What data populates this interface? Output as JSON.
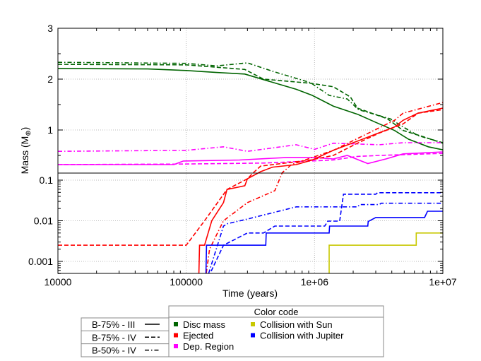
{
  "chart_data": {
    "type": "line",
    "xlabel": "Time (years)",
    "ylabel": "Mass (M",
    "ylabel_sub": "⊕",
    "ylabel_close": ")",
    "x_scale": "log",
    "xlim": [
      10000,
      10000000
    ],
    "x_ticks": [
      {
        "v": 10000,
        "label": "10000"
      },
      {
        "v": 100000,
        "label": "100000"
      },
      {
        "v": 1000000,
        "label": "1e+06"
      },
      {
        "v": 10000000,
        "label": "1e+07"
      }
    ],
    "panels": [
      {
        "position": "top",
        "y_scale": "linear",
        "ylim": [
          0.15,
          3
        ],
        "y_ticks": [
          {
            "v": 3,
            "label": "3"
          },
          {
            "v": 2,
            "label": "2"
          },
          {
            "v": 1,
            "label": "1"
          }
        ]
      },
      {
        "position": "bottom",
        "y_scale": "log",
        "ylim": [
          0.0005,
          0.15
        ],
        "y_ticks": [
          {
            "v": 0.1,
            "label": "0.1"
          },
          {
            "v": 0.01,
            "label": "0.01"
          },
          {
            "v": 0.001,
            "label": "0.001"
          }
        ]
      }
    ],
    "grid": true,
    "colors": {
      "disc": "#006400",
      "ejected": "#ff0000",
      "dep": "#ff00ff",
      "sun": "#c8c800",
      "jupiter": "#0000ff"
    },
    "line_styles": {
      "III75": "solid",
      "IV75": "dashed",
      "IV50": "dash-dot"
    },
    "series": [
      {
        "quantity": "disc",
        "model": "III75",
        "points": [
          [
            10000,
            2.21
          ],
          [
            50000,
            2.2
          ],
          [
            100000,
            2.17
          ],
          [
            172000,
            2.13
          ],
          [
            286000,
            2.1
          ],
          [
            400000,
            1.99
          ],
          [
            720000,
            1.8
          ],
          [
            960000,
            1.68
          ],
          [
            1400000,
            1.47
          ],
          [
            2160000,
            1.31
          ],
          [
            3000000,
            1.15
          ],
          [
            4200000,
            0.99
          ],
          [
            5400000,
            0.82
          ],
          [
            7700000,
            0.67
          ],
          [
            10000000,
            0.61
          ]
        ]
      },
      {
        "quantity": "disc",
        "model": "IV75",
        "points": [
          [
            10000,
            2.29
          ],
          [
            100000,
            2.28
          ],
          [
            286000,
            2.19
          ],
          [
            400000,
            2.0
          ],
          [
            930000,
            1.92
          ],
          [
            1400000,
            1.85
          ],
          [
            1900000,
            1.65
          ],
          [
            2160000,
            1.43
          ],
          [
            3700000,
            1.22
          ],
          [
            4900000,
            0.99
          ],
          [
            7000000,
            0.87
          ],
          [
            10000000,
            0.74
          ]
        ]
      },
      {
        "quantity": "disc",
        "model": "IV50",
        "points": [
          [
            10000,
            2.33
          ],
          [
            100000,
            2.31
          ],
          [
            172000,
            2.26
          ],
          [
            300000,
            2.32
          ],
          [
            490000,
            2.14
          ],
          [
            930000,
            1.93
          ],
          [
            1300000,
            1.68
          ],
          [
            1800000,
            1.61
          ],
          [
            2200000,
            1.4
          ],
          [
            3900000,
            1.22
          ],
          [
            4900000,
            1.06
          ],
          [
            6400000,
            0.89
          ],
          [
            10000000,
            0.75
          ]
        ]
      },
      {
        "quantity": "dep",
        "model": "III75",
        "points": [
          [
            10000,
            0.32
          ],
          [
            80000,
            0.32
          ],
          [
            95000,
            0.39
          ],
          [
            260000,
            0.41
          ],
          [
            610000,
            0.46
          ],
          [
            1000000,
            0.46
          ],
          [
            1400000,
            0.43
          ],
          [
            1800000,
            0.5
          ],
          [
            2600000,
            0.34
          ],
          [
            3600000,
            0.43
          ],
          [
            4900000,
            0.53
          ],
          [
            10000000,
            0.57
          ]
        ]
      },
      {
        "quantity": "dep",
        "model": "IV75",
        "points": [
          [
            10000,
            0.32
          ],
          [
            95000,
            0.33
          ],
          [
            400000,
            0.35
          ],
          [
            1400000,
            0.41
          ],
          [
            2160000,
            0.48
          ],
          [
            3200000,
            0.5
          ],
          [
            10000000,
            0.54
          ]
        ]
      },
      {
        "quantity": "dep",
        "model": "IV50",
        "points": [
          [
            10000,
            0.58
          ],
          [
            100000,
            0.6
          ],
          [
            195000,
            0.67
          ],
          [
            300000,
            0.58
          ],
          [
            720000,
            0.71
          ],
          [
            1000000,
            0.62
          ],
          [
            1400000,
            0.74
          ],
          [
            3200000,
            0.71
          ],
          [
            4900000,
            0.75
          ],
          [
            10000000,
            0.75
          ]
        ]
      },
      {
        "quantity": "ejected",
        "model": "III75",
        "points": [
          [
            125000,
            0.0003
          ],
          [
            127000,
            0.0025
          ],
          [
            139000,
            0.0025
          ],
          [
            158000,
            0.01
          ],
          [
            195000,
            0.028
          ],
          [
            208000,
            0.059
          ],
          [
            286000,
            0.073
          ],
          [
            300000,
            0.108
          ],
          [
            380000,
            0.18
          ],
          [
            470000,
            0.27
          ],
          [
            720000,
            0.32
          ],
          [
            960000,
            0.41
          ],
          [
            1400000,
            0.6
          ],
          [
            2160000,
            0.78
          ],
          [
            3000000,
            0.92
          ],
          [
            4200000,
            1.06
          ],
          [
            4900000,
            1.19
          ],
          [
            6400000,
            1.33
          ],
          [
            10000000,
            1.43
          ]
        ]
      },
      {
        "quantity": "ejected",
        "model": "IV75",
        "points": [
          [
            10000,
            0.0025
          ],
          [
            100000,
            0.0025
          ],
          [
            139000,
            0.01
          ],
          [
            208000,
            0.059
          ],
          [
            300000,
            0.108
          ],
          [
            330000,
            0.15
          ],
          [
            380000,
            0.29
          ],
          [
            930000,
            0.41
          ],
          [
            1400000,
            0.5
          ],
          [
            2160000,
            0.74
          ],
          [
            3200000,
            0.94
          ],
          [
            4900000,
            1.12
          ],
          [
            6400000,
            1.33
          ],
          [
            10000000,
            1.4
          ]
        ]
      },
      {
        "quantity": "ejected",
        "model": "IV50",
        "points": [
          [
            140000,
            0.0003
          ],
          [
            152000,
            0.002
          ],
          [
            195000,
            0.01
          ],
          [
            300000,
            0.028
          ],
          [
            490000,
            0.055
          ],
          [
            560000,
            0.16
          ],
          [
            660000,
            0.32
          ],
          [
            1400000,
            0.6
          ],
          [
            4200000,
            1.19
          ],
          [
            4900000,
            1.33
          ],
          [
            10000000,
            1.54
          ]
        ]
      },
      {
        "quantity": "jupiter",
        "model": "III75",
        "points": [
          [
            142000,
            0.0003
          ],
          [
            144000,
            0.0025
          ],
          [
            417000,
            0.0025
          ],
          [
            420000,
            0.005
          ],
          [
            1300000,
            0.005
          ],
          [
            1310000,
            0.0074
          ],
          [
            2600000,
            0.0074
          ],
          [
            2620000,
            0.0096
          ],
          [
            3000000,
            0.012
          ],
          [
            7200000,
            0.012
          ],
          [
            7600000,
            0.0172
          ],
          [
            10000000,
            0.0172
          ]
        ]
      },
      {
        "quantity": "jupiter",
        "model": "IV75",
        "points": [
          [
            142000,
            0.0003
          ],
          [
            195000,
            0.0025
          ],
          [
            300000,
            0.005
          ],
          [
            400000,
            0.005
          ],
          [
            490000,
            0.0074
          ],
          [
            1200000,
            0.0074
          ],
          [
            1270000,
            0.0098
          ],
          [
            1570000,
            0.0098
          ],
          [
            1680000,
            0.045
          ],
          [
            3000000,
            0.045
          ],
          [
            3100000,
            0.049
          ],
          [
            10000000,
            0.049
          ]
        ]
      },
      {
        "quantity": "jupiter",
        "model": "IV50",
        "points": [
          [
            142000,
            0.0003
          ],
          [
            195000,
            0.0074
          ],
          [
            210000,
            0.0085
          ],
          [
            300000,
            0.011
          ],
          [
            720000,
            0.022
          ],
          [
            2160000,
            0.022
          ],
          [
            2250000,
            0.025
          ],
          [
            3200000,
            0.025
          ],
          [
            3300000,
            0.027
          ],
          [
            10000000,
            0.027
          ]
        ]
      },
      {
        "quantity": "sun",
        "model": "III75",
        "points": [
          [
            1300000,
            0.0003
          ],
          [
            1300000,
            0.0025
          ],
          [
            6200000,
            0.0025
          ],
          [
            6200000,
            0.005
          ],
          [
            10000000,
            0.005
          ]
        ]
      }
    ],
    "legend": {
      "models": [
        {
          "key": "III75",
          "label": "B-75% - III"
        },
        {
          "key": "IV75",
          "label": "B-75% - IV"
        },
        {
          "key": "IV50",
          "label": "B-50% - IV"
        }
      ],
      "color_title": "Color code",
      "colors": [
        {
          "key": "disc",
          "label": "Disc mass"
        },
        {
          "key": "ejected",
          "label": "Ejected"
        },
        {
          "key": "dep",
          "label": "Dep. Region"
        },
        {
          "key": "sun",
          "label": "Collision with Sun"
        },
        {
          "key": "jupiter",
          "label": "Collision with Jupiter"
        }
      ]
    }
  }
}
